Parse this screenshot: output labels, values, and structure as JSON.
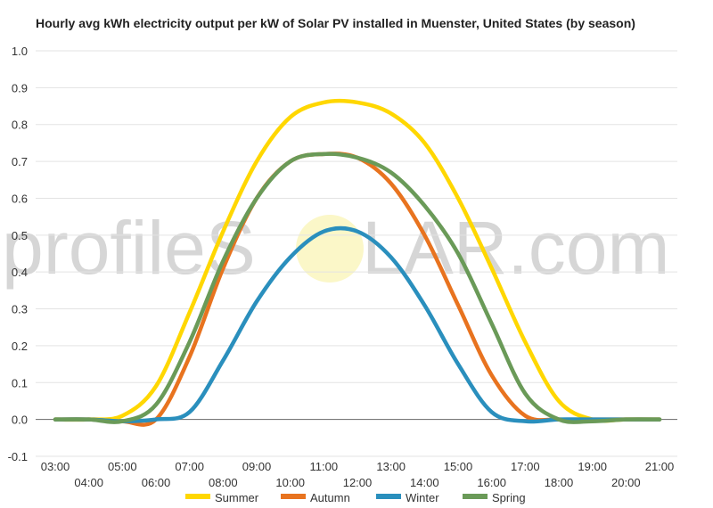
{
  "watermark": {
    "left": "profileS",
    "right": "LAR.com"
  },
  "chart_data": {
    "type": "line",
    "title": "Hourly avg kWh electricity output per kW of Solar PV installed in Muenster, United States (by season)",
    "xlabel": "",
    "ylabel": "",
    "ylim": [
      -0.1,
      1.0
    ],
    "y_ticks": [
      "-0.1",
      "0.0",
      "0.1",
      "0.2",
      "0.3",
      "0.4",
      "0.5",
      "0.6",
      "0.7",
      "0.8",
      "0.9",
      "1.0"
    ],
    "x": [
      "03:00",
      "04:00",
      "05:00",
      "06:00",
      "07:00",
      "08:00",
      "09:00",
      "10:00",
      "11:00",
      "12:00",
      "13:00",
      "14:00",
      "15:00",
      "16:00",
      "17:00",
      "18:00",
      "19:00",
      "20:00",
      "21:00"
    ],
    "grid": true,
    "legend_position": "bottom",
    "series": [
      {
        "name": "Summer",
        "color": "#FFD700",
        "values": [
          0,
          0,
          0.01,
          0.09,
          0.29,
          0.51,
          0.7,
          0.82,
          0.86,
          0.86,
          0.83,
          0.75,
          0.6,
          0.41,
          0.21,
          0.05,
          0,
          0,
          0
        ]
      },
      {
        "name": "Autumn",
        "color": "#E8731F",
        "values": [
          0,
          0,
          -0.005,
          0.0,
          0.17,
          0.41,
          0.6,
          0.7,
          0.72,
          0.71,
          0.64,
          0.5,
          0.31,
          0.12,
          0.01,
          0,
          0,
          0,
          0
        ]
      },
      {
        "name": "Winter",
        "color": "#2A8FBD",
        "values": [
          0,
          0,
          -0.005,
          0.0,
          0.02,
          0.16,
          0.32,
          0.44,
          0.51,
          0.51,
          0.44,
          0.31,
          0.15,
          0.02,
          -0.005,
          0,
          0,
          0,
          0
        ]
      },
      {
        "name": "Spring",
        "color": "#6A9A58",
        "values": [
          0,
          0,
          -0.005,
          0.04,
          0.21,
          0.43,
          0.6,
          0.7,
          0.72,
          0.71,
          0.67,
          0.58,
          0.45,
          0.26,
          0.07,
          0.0,
          -0.005,
          0,
          0
        ]
      }
    ]
  }
}
